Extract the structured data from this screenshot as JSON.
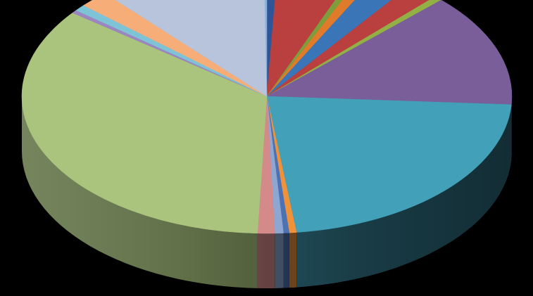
{
  "chart_data": {
    "type": "pie",
    "style": "3d",
    "title": "",
    "legend": "none",
    "background": "#000000",
    "categories": [
      "",
      "",
      "",
      "",
      "",
      "",
      "",
      "",
      "",
      "",
      "",
      "",
      "",
      "",
      "",
      "",
      "",
      "",
      "",
      ""
    ],
    "values": [
      0.8,
      5.6,
      0.6,
      1.0,
      2.6,
      2.2,
      0.6,
      14.2,
      23.5,
      0.5,
      0.4,
      0.6,
      1.2,
      37.0,
      0.4,
      0.4,
      0.4,
      2.1,
      12.0,
      0.2
    ],
    "colors": [
      "#2F5597",
      "#B9403E",
      "#7E9E3C",
      "#E07B2B",
      "#3A75B8",
      "#B9403E",
      "#93B045",
      "#7A5E99",
      "#42A0B9",
      "#F0923A",
      "#4E72B1",
      "#8DA6D2",
      "#D58A8A",
      "#AAC47E",
      "#9B86C0",
      "#7EC3D6",
      "#7EC3D6",
      "#F6AD78",
      "#B7C4DB",
      "#8CB1DE"
    ]
  }
}
